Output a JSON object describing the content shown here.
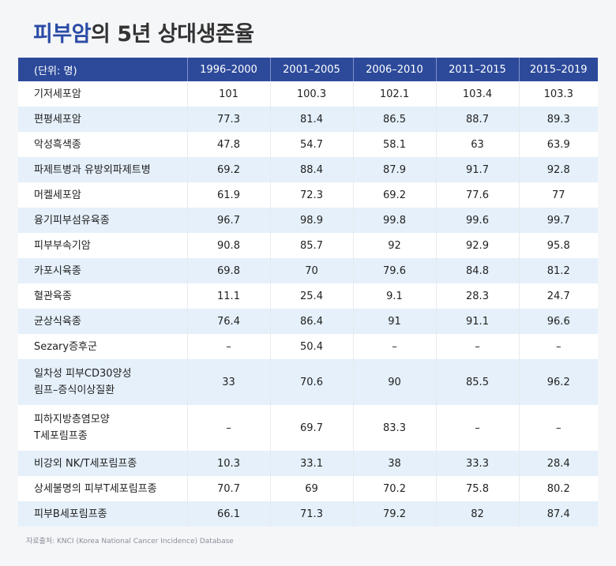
{
  "title": {
    "accent": "피부암",
    "rest": "의 5년 상대생존율"
  },
  "table": {
    "headers": [
      "(단위: 명)",
      "1996–2000",
      "2001–2005",
      "2006–2010",
      "2011–2015",
      "2015–2019"
    ],
    "rows": [
      {
        "name": "기저세포암",
        "values": [
          "101",
          "100.3",
          "102.1",
          "103.4",
          "103.3"
        ]
      },
      {
        "name": "편평세포암",
        "values": [
          "77.3",
          "81.4",
          "86.5",
          "88.7",
          "89.3"
        ]
      },
      {
        "name": "악성흑색종",
        "values": [
          "47.8",
          "54.7",
          "58.1",
          "63",
          "63.9"
        ]
      },
      {
        "name": "파제트병과 유방외파제트병",
        "values": [
          "69.2",
          "88.4",
          "87.9",
          "91.7",
          "92.8"
        ]
      },
      {
        "name": "머켈세포암",
        "values": [
          "61.9",
          "72.3",
          "69.2",
          "77.6",
          "77"
        ]
      },
      {
        "name": "융기피부섬유육종",
        "values": [
          "96.7",
          "98.9",
          "99.8",
          "99.6",
          "99.7"
        ]
      },
      {
        "name": "피부부속기암",
        "values": [
          "90.8",
          "85.7",
          "92",
          "92.9",
          "95.8"
        ]
      },
      {
        "name": "카포시육종",
        "values": [
          "69.8",
          "70",
          "79.6",
          "84.8",
          "81.2"
        ]
      },
      {
        "name": "혈관육종",
        "values": [
          "11.1",
          "25.4",
          "9.1",
          "28.3",
          "24.7"
        ]
      },
      {
        "name": "균상식육종",
        "values": [
          "76.4",
          "86.4",
          "91",
          "91.1",
          "96.6"
        ]
      },
      {
        "name": "Sezary증후군",
        "values": [
          "–",
          "50.4",
          "–",
          "–",
          "–"
        ]
      },
      {
        "name_lines": [
          "일차성 피부CD30양성",
          "림프–증식이상질환"
        ],
        "values": [
          "33",
          "70.6",
          "90",
          "85.5",
          "96.2"
        ]
      },
      {
        "name_lines": [
          "피하지방층염모양",
          "T세포림프종"
        ],
        "values": [
          "–",
          "69.7",
          "83.3",
          "–",
          "–"
        ]
      },
      {
        "name": "비강외 NK/T세포림프종",
        "values": [
          "10.3",
          "33.1",
          "38",
          "33.3",
          "28.4"
        ]
      },
      {
        "name": "상세불명의 피부T세포림프종",
        "values": [
          "70.7",
          "69",
          "70.2",
          "75.8",
          "80.2"
        ]
      },
      {
        "name": "피부B세포림프종",
        "values": [
          "66.1",
          "71.3",
          "79.2",
          "82",
          "87.4"
        ]
      }
    ]
  },
  "source": "자료출처: KNCI (Korea National Cancer Incidence) Database",
  "colors": {
    "header_bg": "#2d4a9a",
    "title_accent": "#2b4ca6",
    "row_alt_bg": "#e5f0fa",
    "page_bg": "#f5f6f8"
  }
}
